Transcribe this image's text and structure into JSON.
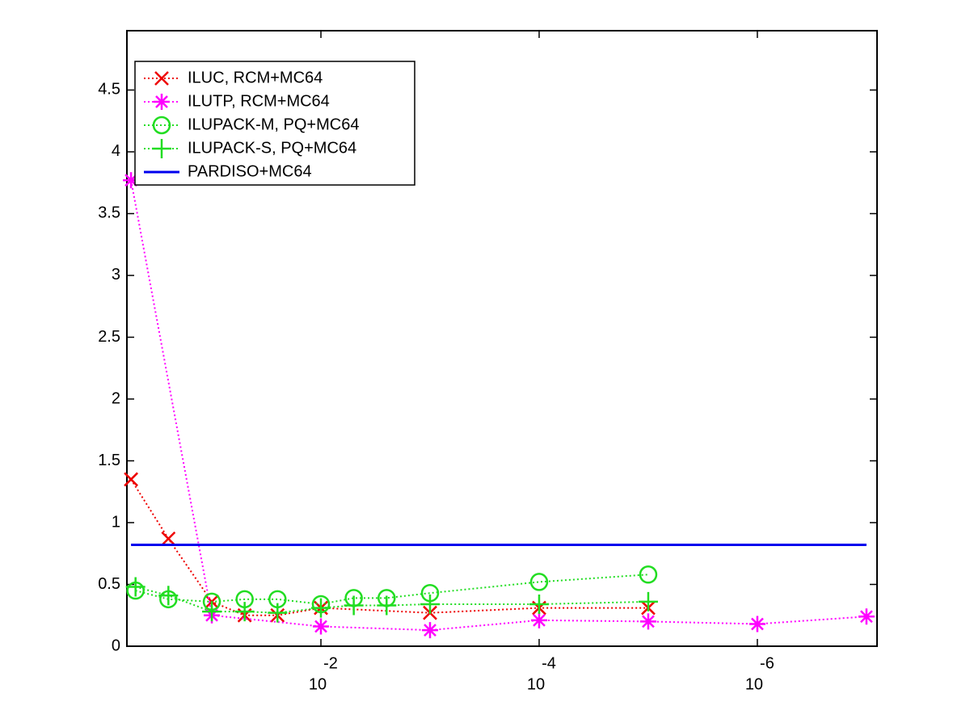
{
  "chart_data": {
    "type": "line",
    "xscale": "log",
    "xdir": "reverse",
    "xlim": [
      0.6,
      8e-08
    ],
    "ylim": [
      0,
      4.98
    ],
    "xticks": [
      {
        "value": 0.01,
        "label": "10",
        "exponent": "-2"
      },
      {
        "value": 0.0001,
        "label": "10",
        "exponent": "-4"
      },
      {
        "value": 1e-06,
        "label": "10",
        "exponent": "-6"
      }
    ],
    "yticks": [
      0,
      0.5,
      1,
      1.5,
      2,
      2.5,
      3,
      3.5,
      4,
      4.5
    ],
    "legend": "upper left",
    "series": [
      {
        "name": "ILUC, RCM+MC64",
        "color": "#ee0000",
        "marker": "x",
        "linestyle": "dotted",
        "x": [
          0.55,
          0.25,
          0.1,
          0.05,
          0.025,
          0.01,
          0.001,
          0.0001,
          1e-05
        ],
        "values": [
          1.35,
          0.87,
          0.36,
          0.25,
          0.25,
          0.31,
          0.27,
          0.31,
          0.31
        ]
      },
      {
        "name": "ILUTP, RCM+MC64",
        "color": "#ff00ff",
        "marker": "asterisk",
        "linestyle": "dotted",
        "x": [
          0.55,
          0.1,
          0.01,
          0.001,
          0.0001,
          1e-05,
          1e-06,
          1e-07
        ],
        "values": [
          3.77,
          0.25,
          0.16,
          0.13,
          0.21,
          0.2,
          0.18,
          0.24
        ]
      },
      {
        "name": "ILUPACK-M, PQ+MC64",
        "color": "#22dd22",
        "marker": "circle",
        "linestyle": "dotted",
        "x": [
          0.5,
          0.25,
          0.1,
          0.05,
          0.025,
          0.01,
          0.005,
          0.0025,
          0.001,
          0.0001,
          1e-05
        ],
        "values": [
          0.45,
          0.38,
          0.36,
          0.38,
          0.38,
          0.34,
          0.39,
          0.39,
          0.43,
          0.52,
          0.58
        ]
      },
      {
        "name": "ILUPACK-S, PQ+MC64",
        "color": "#22dd22",
        "marker": "plus",
        "linestyle": "dotted",
        "x": [
          0.5,
          0.25,
          0.1,
          0.05,
          0.025,
          0.01,
          0.005,
          0.0025,
          0.001,
          0.0001,
          1e-05
        ],
        "values": [
          0.48,
          0.41,
          0.28,
          0.28,
          0.27,
          0.31,
          0.33,
          0.33,
          0.34,
          0.34,
          0.36
        ]
      },
      {
        "name": "PARDISO+MC64",
        "color": "#0000ee",
        "marker": "none",
        "linestyle": "solid",
        "x": [
          0.55,
          1e-07
        ],
        "values": [
          0.82,
          0.82
        ]
      }
    ]
  }
}
